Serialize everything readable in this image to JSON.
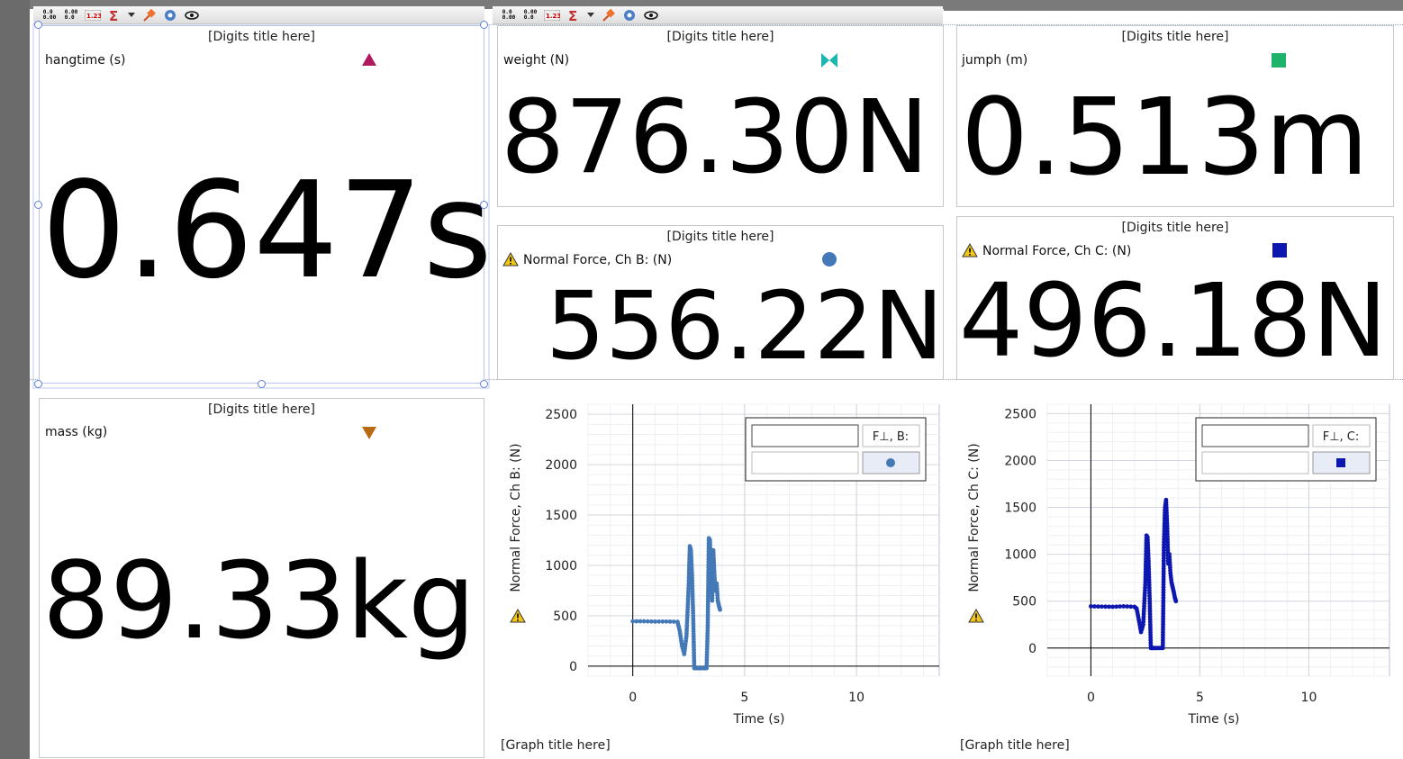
{
  "digits_title": "[Digits title here]",
  "graph_title": "[Graph title here]",
  "toolbar": {
    "icons": [
      "stats-icon",
      "stats-reset-icon",
      "digits-1-23-icon",
      "sum-icon",
      "dropdown-arrow-icon",
      "pin-icon",
      "settings-gear-icon",
      "visibility-eye-icon"
    ],
    "stat_text_a": "0.0",
    "stat_text_b": "0.00",
    "num_text": "1.23"
  },
  "meters": {
    "hangtime": {
      "label": "hangtime (s)",
      "value": "0.647s",
      "marker": "triangle-up",
      "color": "#b0195e"
    },
    "weight": {
      "label": "weight (N)",
      "value": "876.30N",
      "marker": "bowtie",
      "color": "#1fb5b0"
    },
    "jumph": {
      "label": "jumph (m)",
      "value": "0.513m",
      "marker": "square",
      "color": "#1db36b"
    },
    "normal_b": {
      "label": "Normal Force, Ch B: (N)",
      "value": "556.22N",
      "marker": "circle",
      "color": "#4479b8",
      "warning": true
    },
    "normal_c": {
      "label": "Normal Force, Ch C: (N)",
      "value": "496.18N",
      "marker": "square",
      "color": "#0d17b0",
      "warning": true
    },
    "mass": {
      "label": "mass (kg)",
      "value": "89.33kg",
      "marker": "triangle-down",
      "color": "#b86a12"
    }
  },
  "graphs": {
    "b": {
      "ylabel": "Normal Force, Ch B: (N)",
      "xlabel": "Time (s)",
      "legend_label": "F⊥, B:",
      "color": "#4479b8"
    },
    "c": {
      "ylabel": "Normal Force, Ch C: (N)",
      "xlabel": "Time (s)",
      "legend_label": "F⊥, C:",
      "color": "#0d17b0"
    }
  },
  "chart_data": [
    {
      "type": "scatter",
      "xlabel": "Time (s)",
      "ylabel": "Normal Force, Ch B: (N)",
      "xlim": [
        -2,
        13.7
      ],
      "ylim": [
        -100,
        2600
      ],
      "xticks": [
        0,
        5,
        10
      ],
      "yticks": [
        0,
        500,
        1000,
        1500,
        2000,
        2500
      ],
      "grid": true,
      "legend_position": "top-right",
      "series": [
        {
          "name": "F⊥, B:",
          "color": "#4479b8",
          "x": [
            0,
            0.5,
            1.0,
            1.5,
            2.0,
            2.1,
            2.2,
            2.3,
            2.4,
            2.5,
            2.55,
            2.6,
            2.65,
            2.7,
            2.75,
            2.8,
            2.85,
            2.9,
            3.0,
            3.1,
            3.2,
            3.3,
            3.35,
            3.4,
            3.45,
            3.5,
            3.55,
            3.6,
            3.65,
            3.7,
            3.75,
            3.8,
            3.85,
            3.9
          ],
          "y": [
            445,
            445,
            442,
            443,
            440,
            350,
            200,
            120,
            300,
            800,
            1190,
            1150,
            900,
            500,
            -20,
            -20,
            -20,
            -20,
            -20,
            -20,
            -20,
            -20,
            380,
            1270,
            1250,
            900,
            650,
            1150,
            900,
            750,
            820,
            650,
            600,
            560
          ]
        }
      ]
    },
    {
      "type": "scatter",
      "xlabel": "Time (s)",
      "ylabel": "Normal Force, Ch C: (N)",
      "xlim": [
        -2,
        13.7
      ],
      "ylim": [
        -300,
        2600
      ],
      "xticks": [
        0,
        5,
        10
      ],
      "yticks": [
        0,
        500,
        1000,
        1500,
        2000,
        2500
      ],
      "grid": true,
      "legend_position": "top-right",
      "series": [
        {
          "name": "F⊥, C:",
          "color": "#0d17b0",
          "x": [
            0,
            0.5,
            1.0,
            1.5,
            2.0,
            2.1,
            2.2,
            2.3,
            2.4,
            2.5,
            2.55,
            2.6,
            2.65,
            2.7,
            2.75,
            2.8,
            2.85,
            2.9,
            3.0,
            3.1,
            3.2,
            3.3,
            3.35,
            3.4,
            3.45,
            3.5,
            3.55,
            3.6,
            3.65,
            3.7,
            3.75,
            3.8,
            3.85,
            3.9
          ],
          "y": [
            445,
            442,
            440,
            445,
            440,
            420,
            300,
            170,
            250,
            700,
            1200,
            1180,
            900,
            500,
            0,
            0,
            0,
            0,
            0,
            0,
            0,
            0,
            1100,
            1500,
            1580,
            1300,
            900,
            1000,
            800,
            700,
            650,
            600,
            540,
            500
          ]
        }
      ]
    }
  ]
}
